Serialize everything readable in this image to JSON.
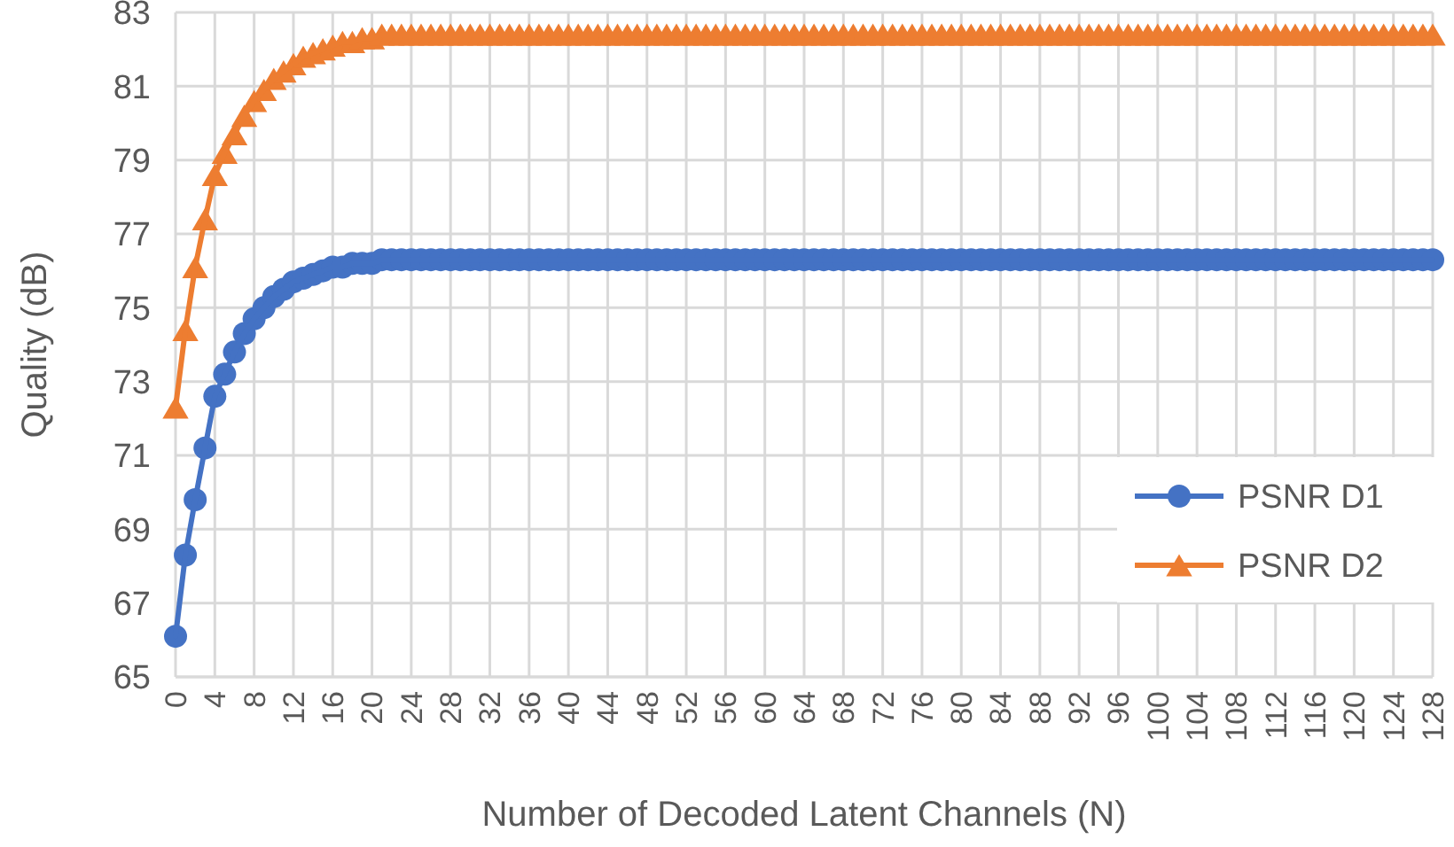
{
  "chart_data": {
    "type": "line",
    "xlabel": "Number of Decoded Latent Channels (N)",
    "ylabel": "Quality (dB)",
    "x": [
      0,
      1,
      2,
      3,
      4,
      5,
      6,
      7,
      8,
      9,
      10,
      11,
      12,
      13,
      14,
      15,
      16,
      17,
      18,
      19,
      20,
      21,
      22,
      23,
      24,
      25,
      26,
      27,
      28,
      29,
      30,
      31,
      32,
      33,
      34,
      35,
      36,
      37,
      38,
      39,
      40,
      41,
      42,
      43,
      44,
      45,
      46,
      47,
      48,
      49,
      50,
      51,
      52,
      53,
      54,
      55,
      56,
      57,
      58,
      59,
      60,
      61,
      62,
      63,
      64,
      65,
      66,
      67,
      68,
      69,
      70,
      71,
      72,
      73,
      74,
      75,
      76,
      77,
      78,
      79,
      80,
      81,
      82,
      83,
      84,
      85,
      86,
      87,
      88,
      89,
      90,
      91,
      92,
      93,
      94,
      95,
      96,
      97,
      98,
      99,
      100,
      101,
      102,
      103,
      104,
      105,
      106,
      107,
      108,
      109,
      110,
      111,
      112,
      113,
      114,
      115,
      116,
      117,
      118,
      119,
      120,
      121,
      122,
      123,
      124,
      125,
      126,
      127,
      128
    ],
    "xlim": [
      0,
      128
    ],
    "xticks": [
      0,
      4,
      8,
      12,
      16,
      20,
      24,
      28,
      32,
      36,
      40,
      44,
      48,
      52,
      56,
      60,
      64,
      68,
      72,
      76,
      80,
      84,
      88,
      92,
      96,
      100,
      104,
      108,
      112,
      116,
      120,
      124,
      128
    ],
    "ylim": [
      65,
      83
    ],
    "yticks": [
      65,
      67,
      69,
      71,
      73,
      75,
      77,
      79,
      81,
      83
    ],
    "grid": true,
    "legend": "right",
    "line_style": "solid",
    "series": [
      {
        "name": "PSNR D1",
        "color": "#4472c4",
        "marker": "circle",
        "values": [
          66.1,
          68.3,
          69.8,
          71.2,
          72.6,
          73.2,
          73.8,
          74.3,
          74.7,
          75.0,
          75.3,
          75.5,
          75.7,
          75.8,
          75.9,
          76.0,
          76.1,
          76.1,
          76.2,
          76.2,
          76.2,
          76.3,
          76.3,
          76.3,
          76.3,
          76.3,
          76.3,
          76.3,
          76.3,
          76.3,
          76.3,
          76.3,
          76.3,
          76.3,
          76.3,
          76.3,
          76.3,
          76.3,
          76.3,
          76.3,
          76.3,
          76.3,
          76.3,
          76.3,
          76.3,
          76.3,
          76.3,
          76.3,
          76.3,
          76.3,
          76.3,
          76.3,
          76.3,
          76.3,
          76.3,
          76.3,
          76.3,
          76.3,
          76.3,
          76.3,
          76.3,
          76.3,
          76.3,
          76.3,
          76.3,
          76.3,
          76.3,
          76.3,
          76.3,
          76.3,
          76.3,
          76.3,
          76.3,
          76.3,
          76.3,
          76.3,
          76.3,
          76.3,
          76.3,
          76.3,
          76.3,
          76.3,
          76.3,
          76.3,
          76.3,
          76.3,
          76.3,
          76.3,
          76.3,
          76.3,
          76.3,
          76.3,
          76.3,
          76.3,
          76.3,
          76.3,
          76.3,
          76.3,
          76.3,
          76.3,
          76.3,
          76.3,
          76.3,
          76.3,
          76.3,
          76.3,
          76.3,
          76.3,
          76.3,
          76.3,
          76.3,
          76.3,
          76.3,
          76.3,
          76.3,
          76.3,
          76.3,
          76.3,
          76.3,
          76.3,
          76.3,
          76.3,
          76.3,
          76.3,
          76.3,
          76.3,
          76.3,
          76.3,
          76.3
        ]
      },
      {
        "name": "PSNR D2",
        "color": "#ed7d31",
        "marker": "triangle",
        "values": [
          72.3,
          74.4,
          76.1,
          77.4,
          78.6,
          79.2,
          79.7,
          80.2,
          80.6,
          80.9,
          81.2,
          81.4,
          81.6,
          81.8,
          81.9,
          82.0,
          82.1,
          82.2,
          82.2,
          82.3,
          82.3,
          82.4,
          82.4,
          82.4,
          82.4,
          82.4,
          82.4,
          82.4,
          82.4,
          82.4,
          82.4,
          82.4,
          82.4,
          82.4,
          82.4,
          82.4,
          82.4,
          82.4,
          82.4,
          82.4,
          82.4,
          82.4,
          82.4,
          82.4,
          82.4,
          82.4,
          82.4,
          82.4,
          82.4,
          82.4,
          82.4,
          82.4,
          82.4,
          82.4,
          82.4,
          82.4,
          82.4,
          82.4,
          82.4,
          82.4,
          82.4,
          82.4,
          82.4,
          82.4,
          82.4,
          82.4,
          82.4,
          82.4,
          82.4,
          82.4,
          82.4,
          82.4,
          82.4,
          82.4,
          82.4,
          82.4,
          82.4,
          82.4,
          82.4,
          82.4,
          82.4,
          82.4,
          82.4,
          82.4,
          82.4,
          82.4,
          82.4,
          82.4,
          82.4,
          82.4,
          82.4,
          82.4,
          82.4,
          82.4,
          82.4,
          82.4,
          82.4,
          82.4,
          82.4,
          82.4,
          82.4,
          82.4,
          82.4,
          82.4,
          82.4,
          82.4,
          82.4,
          82.4,
          82.4,
          82.4,
          82.4,
          82.4,
          82.4,
          82.4,
          82.4,
          82.4,
          82.4,
          82.4,
          82.4,
          82.4,
          82.4,
          82.4,
          82.4,
          82.4,
          82.4,
          82.4,
          82.4,
          82.4,
          82.4
        ]
      }
    ]
  }
}
